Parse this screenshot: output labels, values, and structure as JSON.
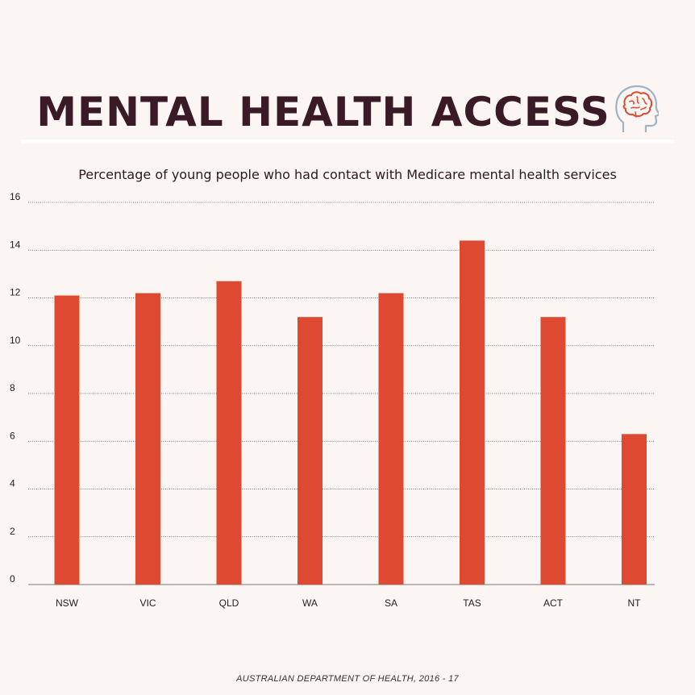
{
  "header": {
    "title": "MENTAL HEALTH ACCESS",
    "icon": "brain-head-icon"
  },
  "footer": {
    "source": "AUSTRALIAN DEPARTMENT OF HEALTH, 2016 - 17"
  },
  "colors": {
    "bar": "#de4a31",
    "title": "#3b1a28",
    "background": "#fbf6f3"
  },
  "chart_data": {
    "type": "bar",
    "title": "Percentage of young people who had contact with Medicare mental health services",
    "categories": [
      "NSW",
      "VIC",
      "QLD",
      "WA",
      "SA",
      "TAS",
      "ACT",
      "NT"
    ],
    "values": [
      12.1,
      12.2,
      12.7,
      11.2,
      12.2,
      14.4,
      11.2,
      6.3
    ],
    "yticks": [
      0,
      2,
      4,
      6,
      8,
      10,
      12,
      14,
      16
    ],
    "ylim": [
      0,
      16
    ],
    "xlabel": "",
    "ylabel": "",
    "grid": true,
    "legend": "none"
  }
}
